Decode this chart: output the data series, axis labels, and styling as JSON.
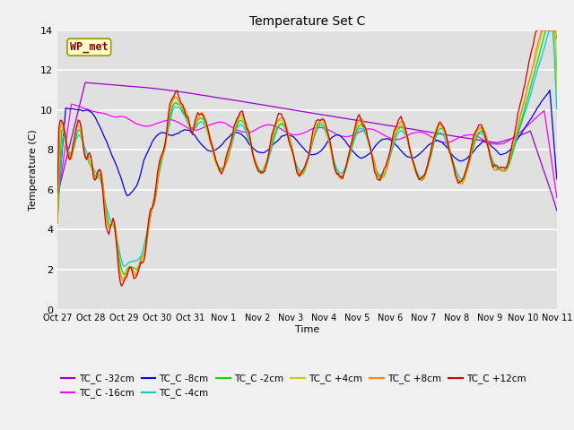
{
  "title": "Temperature Set C",
  "xlabel": "Time",
  "ylabel": "Temperature (C)",
  "ylim": [
    0,
    14
  ],
  "fig_bg": "#f0f0f0",
  "plot_bg": "#e0e0e0",
  "series": [
    {
      "label": "TC_C -32cm",
      "color": "#9900cc"
    },
    {
      "label": "TC_C -16cm",
      "color": "#ff00ff"
    },
    {
      "label": "TC_C -8cm",
      "color": "#0000dd"
    },
    {
      "label": "TC_C -4cm",
      "color": "#00cccc"
    },
    {
      "label": "TC_C -2cm",
      "color": "#00dd00"
    },
    {
      "label": "TC_C +4cm",
      "color": "#cccc00"
    },
    {
      "label": "TC_C +8cm",
      "color": "#ff8800"
    },
    {
      "label": "TC_C +12cm",
      "color": "#cc0000"
    }
  ],
  "xtick_labels": [
    "Oct 27",
    "Oct 28",
    "Oct 29",
    "Oct 30",
    "Oct 31",
    "Nov 1",
    "Nov 2",
    "Nov 3",
    "Nov 4",
    "Nov 5",
    "Nov 6",
    "Nov 7",
    "Nov 8",
    "Nov 9",
    "Nov 10",
    "Nov 11"
  ],
  "ytick_vals": [
    0,
    2,
    4,
    6,
    8,
    10,
    12,
    14
  ],
  "wp_met_fc": "#ffffcc",
  "wp_met_ec": "#999900",
  "wp_met_tc": "#880000"
}
